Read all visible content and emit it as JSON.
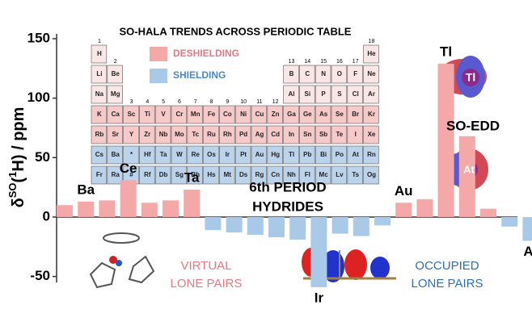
{
  "chart_data": {
    "type": "bar",
    "y_label": [
      "δ",
      "SO",
      "(",
      "1",
      "H) / ppm"
    ],
    "categories": [
      null,
      "Ba",
      null,
      "Ce",
      null,
      null,
      "Ta",
      null,
      null,
      null,
      null,
      null,
      "Ir",
      null,
      null,
      null,
      "Au",
      null,
      "Tl",
      null,
      null,
      null,
      "At"
    ],
    "values": [
      10,
      13,
      14,
      31,
      12,
      14,
      23,
      -11,
      -13,
      -15,
      -17,
      -19,
      -59,
      -14,
      -16,
      -7,
      12,
      15,
      129,
      68,
      7,
      -8,
      -20
    ],
    "positive_color": "#f4a8a8",
    "negative_color": "#a9c9e8",
    "ylim": [
      -55,
      152
    ],
    "yticks": [
      -50,
      0,
      50,
      100,
      150
    ],
    "annotations": {
      "period": [
        "6th PERIOD",
        "HYDRIDES"
      ],
      "virtual": [
        "VIRTUAL",
        "LONE PAIRS"
      ],
      "occupied": [
        "OCCUPIED",
        "LONE PAIRS"
      ],
      "edd": "SO-EDD",
      "tl": "Tl",
      "at": "At"
    }
  },
  "inset": {
    "title": "SO-HALA TRENDS ACROSS PERIODIC TABLE",
    "legend": [
      "DESHIELDING",
      "SHIELDING"
    ],
    "groups": [
      1,
      2,
      3,
      4,
      5,
      6,
      7,
      8,
      9,
      10,
      11,
      12,
      13,
      14,
      15,
      16,
      17,
      18
    ],
    "periods": [
      [
        "H",
        "He"
      ],
      [
        "Li",
        "Be",
        "B",
        "C",
        "N",
        "O",
        "F",
        "Ne"
      ],
      [
        "Na",
        "Mg",
        "Al",
        "Si",
        "P",
        "S",
        "Cl",
        "Ar"
      ],
      [
        "K",
        "Ca",
        "Sc",
        "Ti",
        "V",
        "Cr",
        "Mn",
        "Fe",
        "Co",
        "Ni",
        "Cu",
        "Zn",
        "Ga",
        "Ge",
        "As",
        "Se",
        "Br",
        "Kr"
      ],
      [
        "Rb",
        "Sr",
        "Y",
        "Zr",
        "Nb",
        "Mo",
        "Tc",
        "Ru",
        "Rh",
        "Pd",
        "Ag",
        "Cd",
        "In",
        "Sn",
        "Sb",
        "Te",
        "I",
        "Xe"
      ],
      [
        "Cs",
        "Ba",
        "*",
        "Hf",
        "Ta",
        "W",
        "Re",
        "Os",
        "Ir",
        "Pt",
        "Au",
        "Hg",
        "Tl",
        "Pb",
        "Bi",
        "Po",
        "At",
        "Rn"
      ],
      [
        "Fr",
        "Ra",
        "#",
        "Rf",
        "Db",
        "Sg",
        "Bh",
        "Hs",
        "Mt",
        "Ds",
        "Rg",
        "Cn",
        "Nh",
        "Fl",
        "Mc",
        "Lv",
        "Ts",
        "Og"
      ]
    ]
  }
}
